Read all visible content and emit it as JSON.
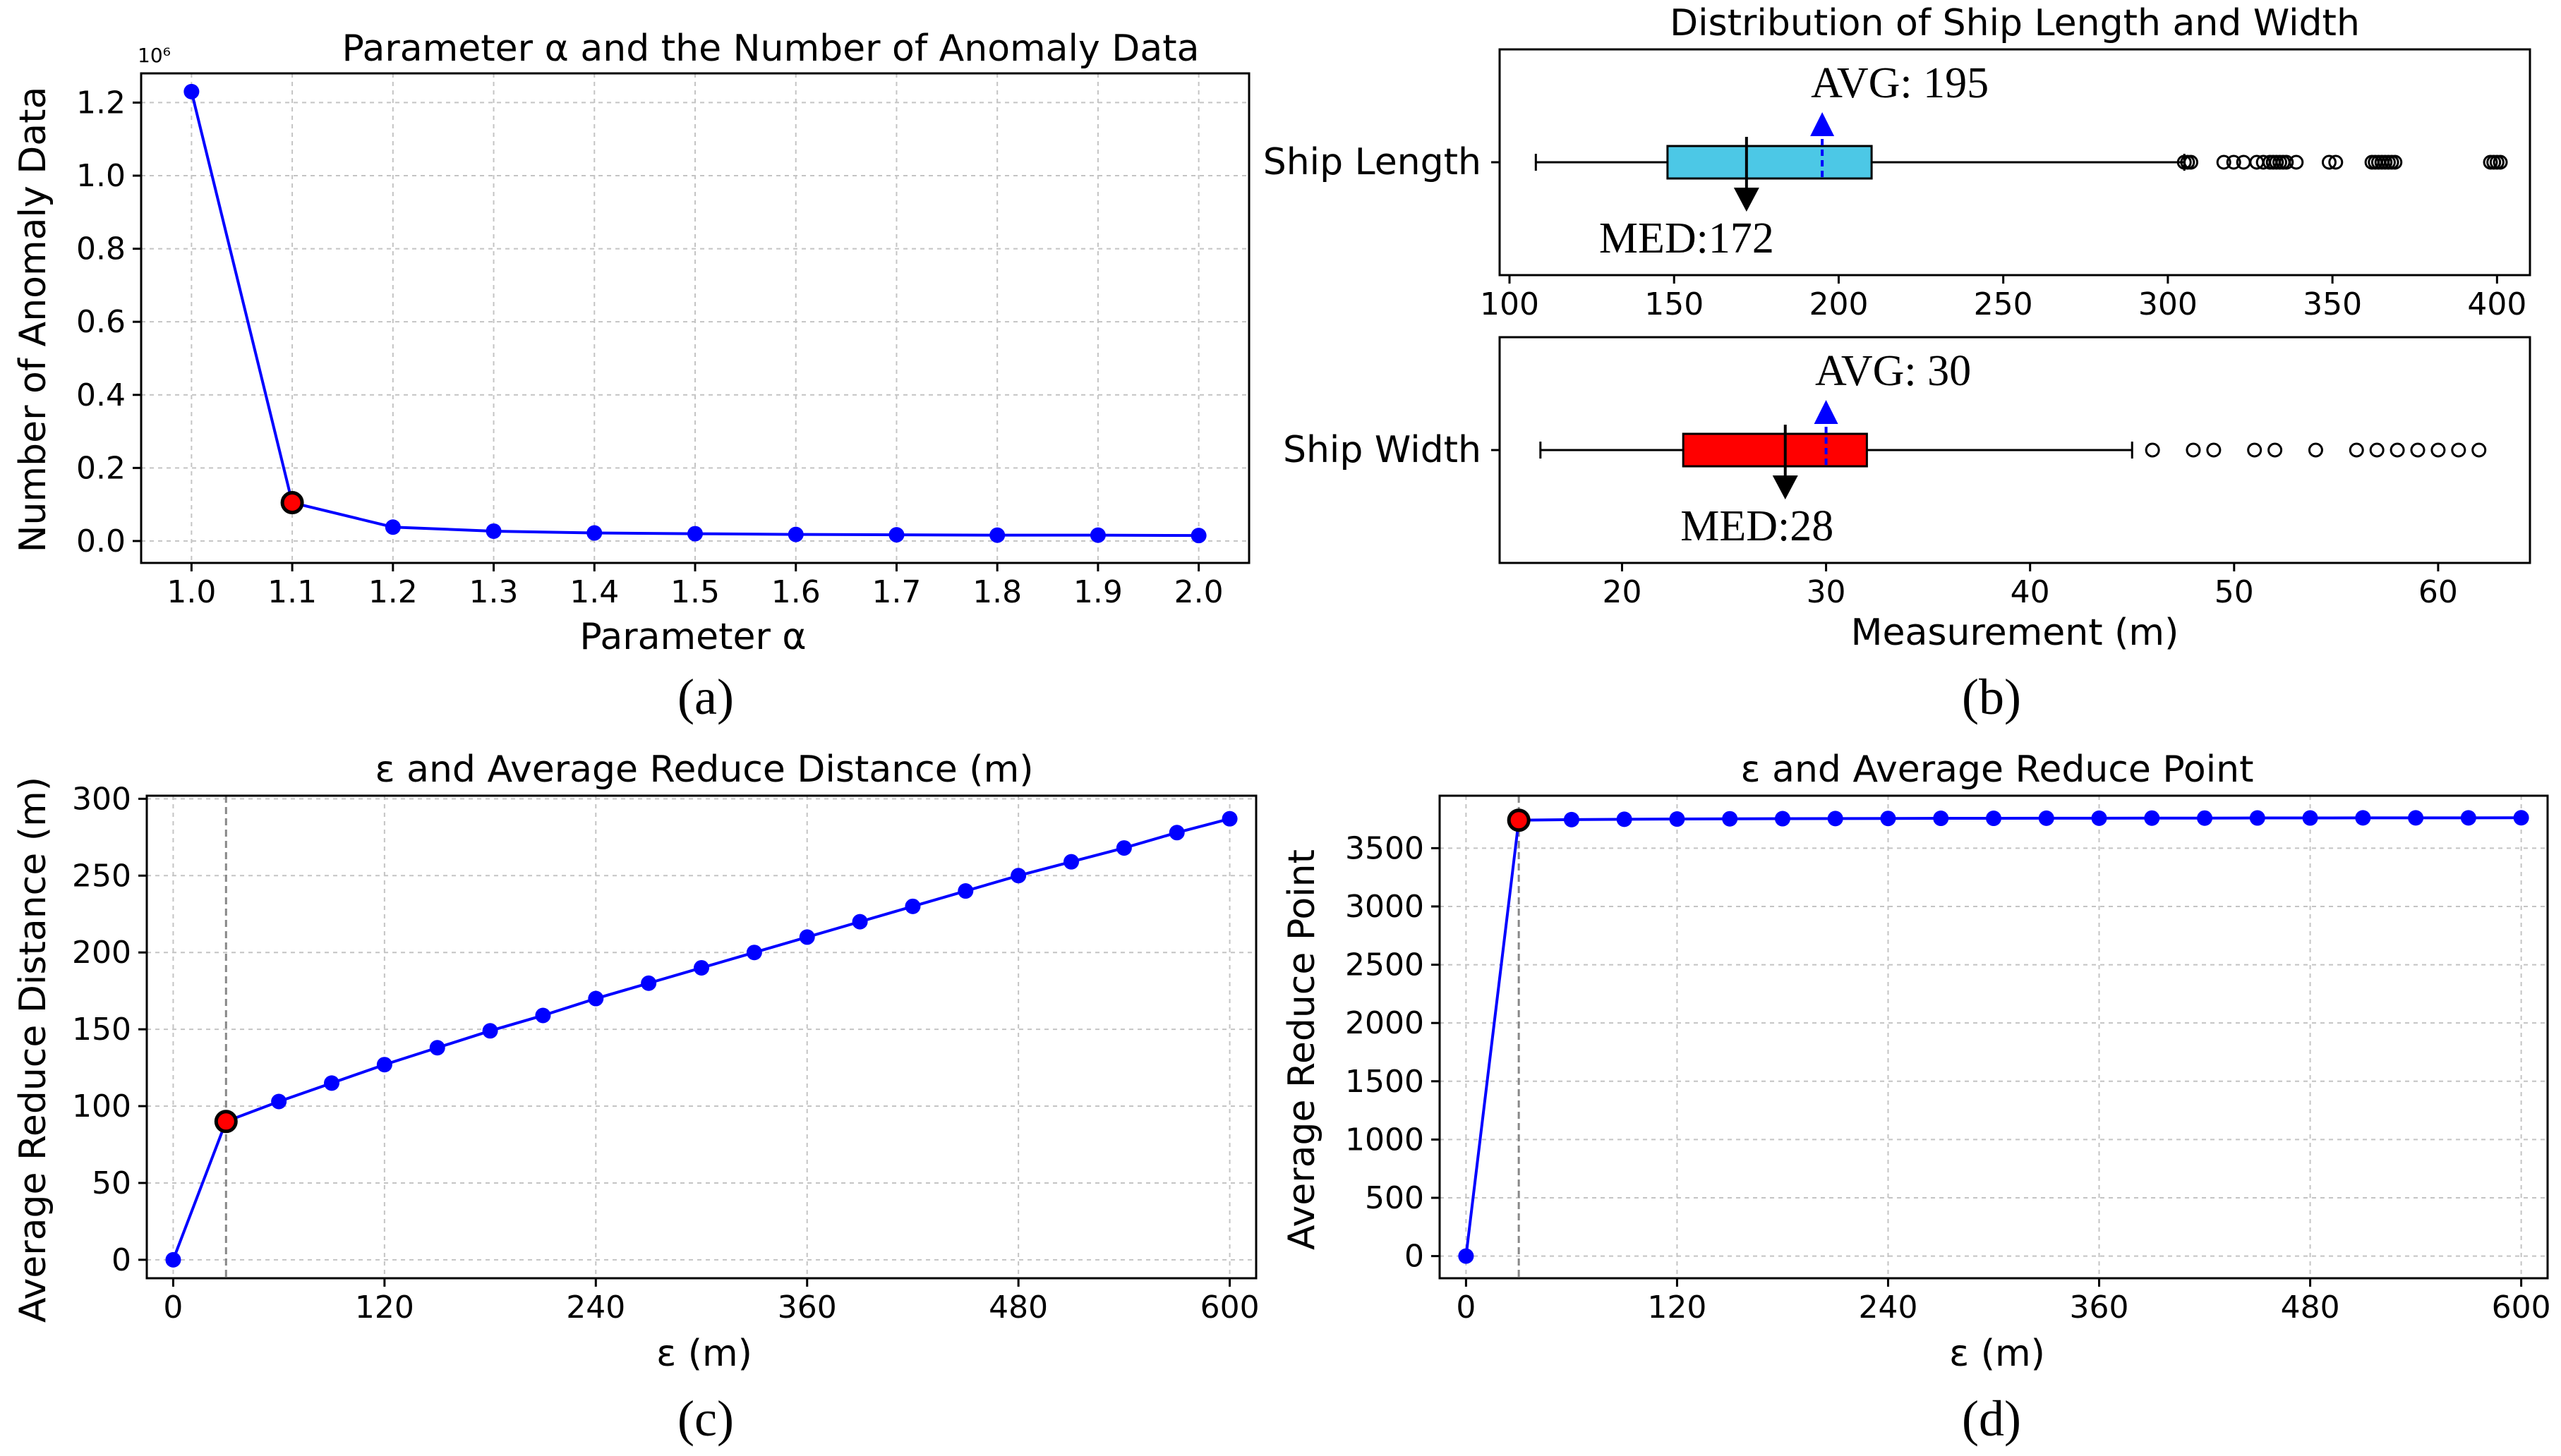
{
  "colors": {
    "line": "#0000ff",
    "highlight_fill": "#ff0000",
    "highlight_edge": "#000000",
    "length_box": "#4cc8e6",
    "width_box": "#ff0000",
    "avg_marker": "#0000ff",
    "grid": "#c4c4c4",
    "ref_line": "#888888"
  },
  "chart_data": [
    {
      "id": "a",
      "type": "line",
      "caption": "(a)",
      "title": "Parameter α and the Number of Anomaly Data",
      "xlabel": "Parameter α",
      "ylabel": "Number of Anomaly Data",
      "y_scale_label": "10⁶",
      "x": [
        1.0,
        1.1,
        1.2,
        1.3,
        1.4,
        1.5,
        1.6,
        1.7,
        1.8,
        1.9,
        2.0
      ],
      "y": [
        1.23,
        0.105,
        0.038,
        0.027,
        0.022,
        0.02,
        0.018,
        0.017,
        0.016,
        0.016,
        0.015
      ],
      "highlight_index": 1,
      "xlim": [
        0.95,
        2.05
      ],
      "ylim": [
        -0.06,
        1.28
      ],
      "xticks": [
        1.0,
        1.1,
        1.2,
        1.3,
        1.4,
        1.5,
        1.6,
        1.7,
        1.8,
        1.9,
        2.0
      ],
      "xtick_labels": [
        "1.0",
        "1.1",
        "1.2",
        "1.3",
        "1.4",
        "1.5",
        "1.6",
        "1.7",
        "1.8",
        "1.9",
        "2.0"
      ],
      "yticks": [
        0.0,
        0.2,
        0.4,
        0.6,
        0.8,
        1.0,
        1.2
      ],
      "ytick_labels": [
        "0.0",
        "0.2",
        "0.4",
        "0.6",
        "0.8",
        "1.0",
        "1.2"
      ],
      "grid": true
    },
    {
      "id": "b",
      "type": "boxplot",
      "caption": "(b)",
      "title": "Distribution of Ship Length and Width",
      "xlabel": "Measurement (m)",
      "panels": [
        {
          "label": "Ship Length",
          "whisker_low": 108,
          "q1": 148,
          "median": 172,
          "q3": 210,
          "whisker_high": 305,
          "mean": 195,
          "outliers": [
            305,
            306,
            307,
            317,
            320,
            323,
            327,
            329,
            331,
            332,
            333,
            334,
            335,
            336,
            339,
            349,
            351,
            362,
            363,
            364,
            365,
            366,
            367,
            368,
            369,
            398,
            399,
            400,
            401
          ],
          "avg_label": "AVG: 195",
          "med_label": "MED:172",
          "xlim": [
            97,
            410
          ],
          "xticks": [
            100,
            150,
            200,
            250,
            300,
            350,
            400
          ],
          "xtick_labels": [
            "100",
            "150",
            "200",
            "250",
            "300",
            "350",
            "400"
          ]
        },
        {
          "label": "Ship Width",
          "whisker_low": 16,
          "q1": 23,
          "median": 28,
          "q3": 32,
          "whisker_high": 45,
          "mean": 30,
          "outliers": [
            46,
            48,
            49,
            51,
            52,
            54,
            56,
            57,
            58,
            59,
            60,
            61,
            62
          ],
          "avg_label": "AVG: 30",
          "med_label": "MED:28",
          "xlim": [
            14,
            64.5
          ],
          "xticks": [
            20,
            30,
            40,
            50,
            60
          ],
          "xtick_labels": [
            "20",
            "30",
            "40",
            "50",
            "60"
          ]
        }
      ]
    },
    {
      "id": "c",
      "type": "line",
      "caption": "(c)",
      "title": "ε and Average Reduce Distance (m)",
      "xlabel": "ε (m)",
      "ylabel": "Average Reduce Distance (m)",
      "x": [
        0,
        30,
        60,
        90,
        120,
        150,
        180,
        210,
        240,
        270,
        300,
        330,
        360,
        390,
        420,
        450,
        480,
        510,
        540,
        570,
        600
      ],
      "y": [
        0,
        90,
        103,
        115,
        127,
        138,
        149,
        159,
        170,
        180,
        190,
        200,
        210,
        220,
        230,
        240,
        250,
        259,
        268,
        278,
        287
      ],
      "highlight_index": 1,
      "ref_x": 30,
      "xlim": [
        -15,
        615
      ],
      "ylim": [
        -12,
        302
      ],
      "xticks": [
        0,
        120,
        240,
        360,
        480,
        600
      ],
      "xtick_labels": [
        "0",
        "120",
        "240",
        "360",
        "480",
        "600"
      ],
      "yticks": [
        0,
        50,
        100,
        150,
        200,
        250,
        300
      ],
      "ytick_labels": [
        "0",
        "50",
        "100",
        "150",
        "200",
        "250",
        "300"
      ],
      "grid": true
    },
    {
      "id": "d",
      "type": "line",
      "caption": "(d)",
      "title": "ε and Average Reduce Point",
      "xlabel": "ε (m)",
      "ylabel": "Average Reduce Point",
      "x": [
        0,
        30,
        60,
        90,
        120,
        150,
        180,
        210,
        240,
        270,
        300,
        330,
        360,
        390,
        420,
        450,
        480,
        510,
        540,
        570,
        600
      ],
      "y": [
        0,
        3740,
        3745,
        3748,
        3750,
        3752,
        3753,
        3754,
        3755,
        3756,
        3756,
        3757,
        3757,
        3758,
        3758,
        3759,
        3759,
        3760,
        3760,
        3760,
        3761
      ],
      "highlight_index": 1,
      "ref_x": 30,
      "xlim": [
        -15,
        615
      ],
      "ylim": [
        -190,
        3950
      ],
      "xticks": [
        0,
        120,
        240,
        360,
        480,
        600
      ],
      "xtick_labels": [
        "0",
        "120",
        "240",
        "360",
        "480",
        "600"
      ],
      "yticks": [
        0,
        500,
        1000,
        1500,
        2000,
        2500,
        3000,
        3500
      ],
      "ytick_labels": [
        "0",
        "500",
        "1000",
        "1500",
        "2000",
        "2500",
        "3000",
        "3500"
      ],
      "grid": true
    }
  ]
}
